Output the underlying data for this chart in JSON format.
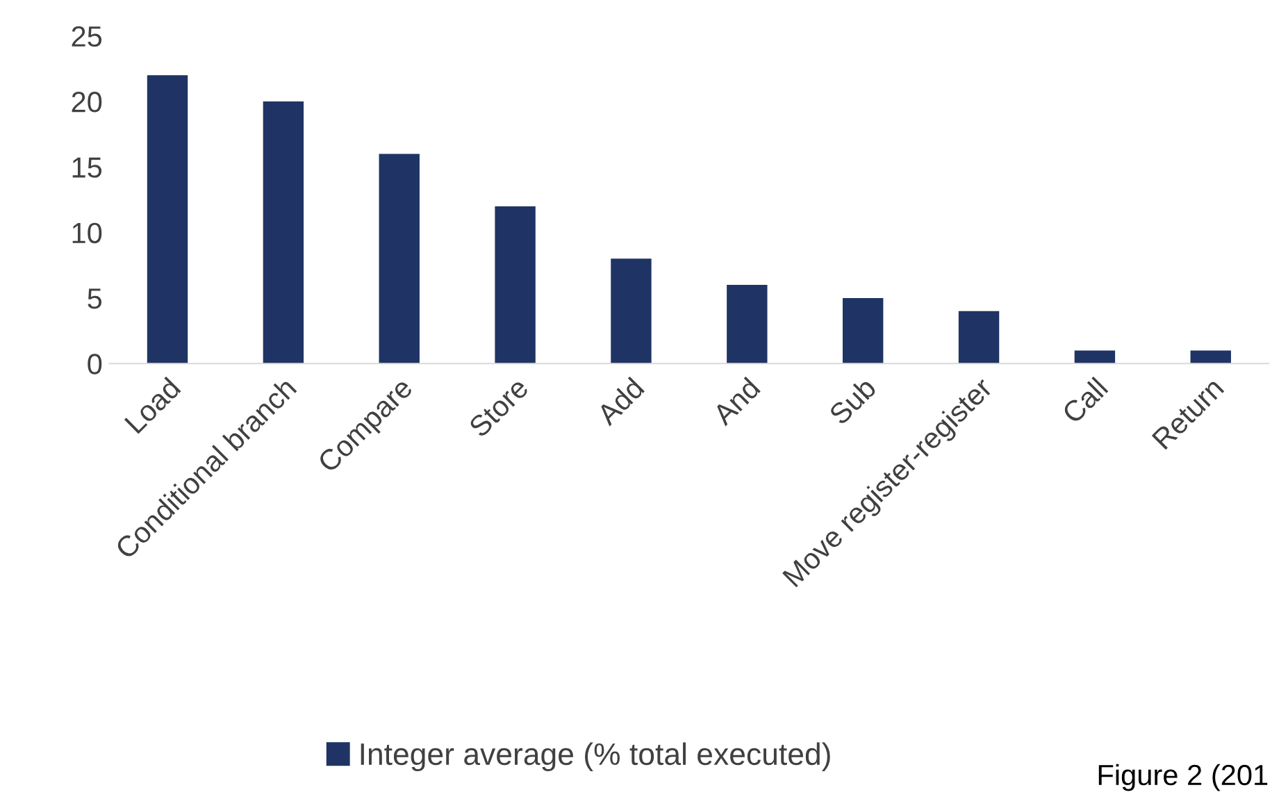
{
  "chart_data": {
    "type": "bar",
    "categories": [
      "Load",
      "Conditional branch",
      "Compare",
      "Store",
      "Add",
      "And",
      "Sub",
      "Move register-register",
      "Call",
      "Return"
    ],
    "series": [
      {
        "name": "Integer average (% total executed)",
        "color": "#1f3464",
        "values": [
          22,
          20,
          16,
          12,
          8,
          6,
          5,
          4,
          1,
          1
        ]
      }
    ],
    "ylim": [
      0,
      25
    ],
    "yticks": [
      0,
      5,
      10,
      15,
      20,
      25
    ],
    "grid": false,
    "legend": "bottom",
    "annotations": [
      "Figure 2 (201"
    ]
  }
}
